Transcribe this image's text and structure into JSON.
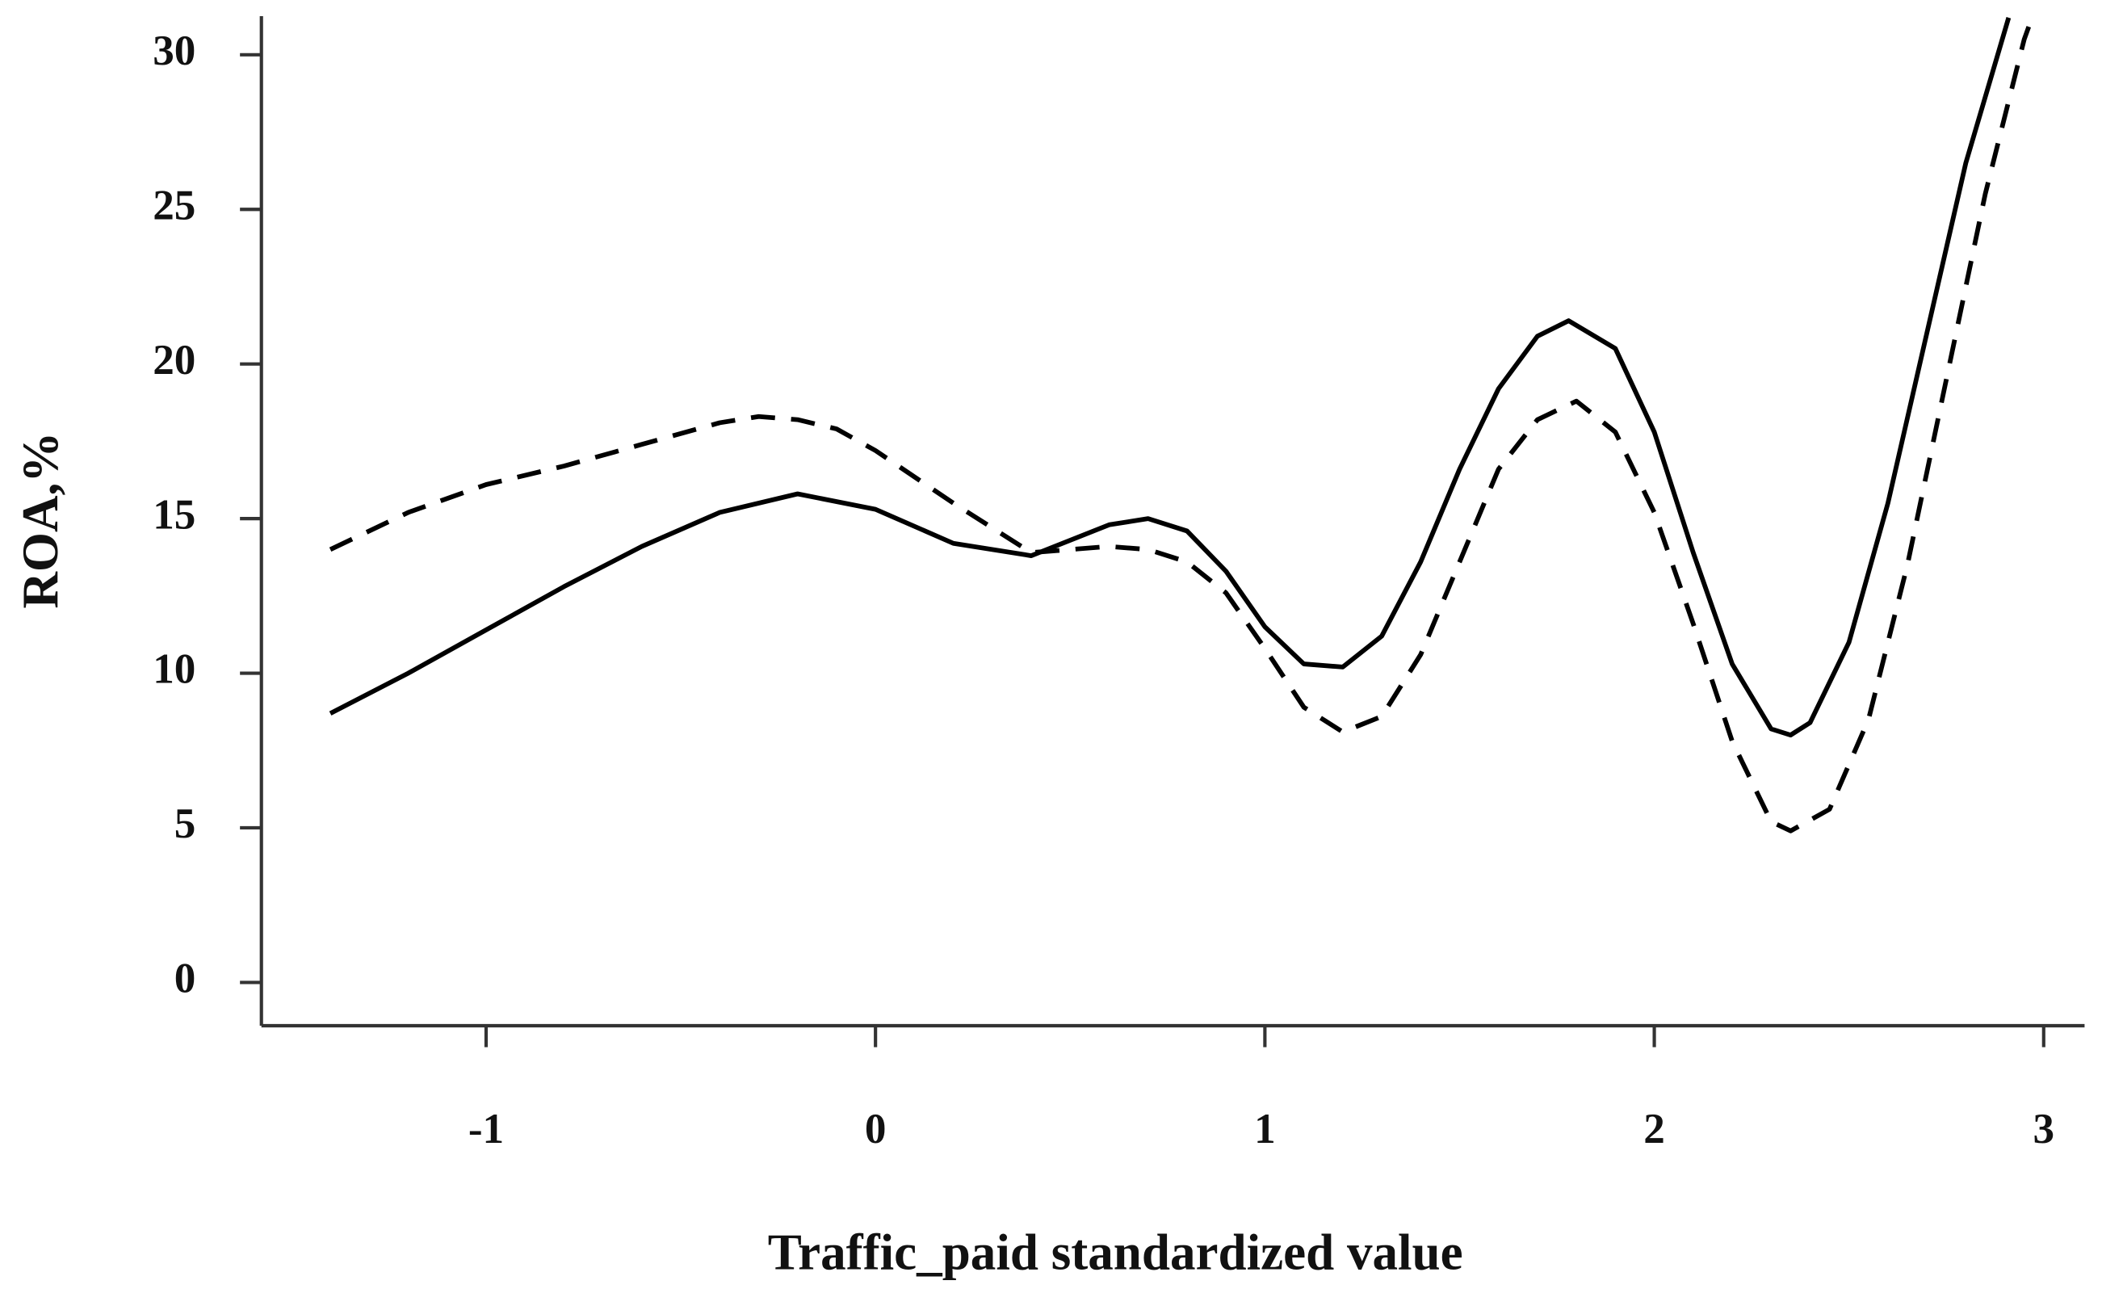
{
  "chart_data": {
    "type": "line",
    "x_label": "Traffic_paid standardized value",
    "y_label": "ROA,%",
    "xlim": [
      -1.577,
      3.105
    ],
    "ylim": [
      -1.4,
      31.25
    ],
    "xticks": [
      -1,
      0,
      1,
      2,
      3
    ],
    "yticks": [
      0,
      5,
      10,
      15,
      20,
      25,
      30
    ],
    "grid": false,
    "series": [
      {
        "color": "#000000",
        "dashed": false,
        "x": [
          -1.4,
          -1.2,
          -1,
          -0.8,
          -0.6,
          -0.4,
          -0.2,
          0,
          0.2,
          0.4,
          0.6,
          0.7,
          0.8,
          0.9,
          1.0,
          1.1,
          1.2,
          1.3,
          1.4,
          1.5,
          1.6,
          1.7,
          1.78,
          1.9,
          2.0,
          2.1,
          2.2,
          2.3,
          2.35,
          2.4,
          2.5,
          2.6,
          2.7,
          2.8,
          2.91
        ],
        "values": [
          8.7,
          10.0,
          11.4,
          12.8,
          14.1,
          15.2,
          15.8,
          15.3,
          14.2,
          13.8,
          14.8,
          15.0,
          14.6,
          13.3,
          11.5,
          10.3,
          10.2,
          11.2,
          13.6,
          16.6,
          19.2,
          20.9,
          21.4,
          20.5,
          17.8,
          13.9,
          10.3,
          8.2,
          8.0,
          8.4,
          11.0,
          15.5,
          21.0,
          26.5,
          31.2
        ]
      },
      {
        "color": "#000000",
        "dashed": true,
        "x": [
          -1.4,
          -1.2,
          -1,
          -0.8,
          -0.6,
          -0.4,
          -0.3,
          -0.2,
          -0.1,
          0,
          0.2,
          0.4,
          0.6,
          0.7,
          0.8,
          0.9,
          1.0,
          1.1,
          1.2,
          1.3,
          1.4,
          1.5,
          1.6,
          1.7,
          1.8,
          1.9,
          2.0,
          2.1,
          2.2,
          2.3,
          2.35,
          2.45,
          2.55,
          2.65,
          2.75,
          2.85,
          2.95,
          2.97
        ],
        "values": [
          14.0,
          15.2,
          16.1,
          16.7,
          17.4,
          18.1,
          18.3,
          18.2,
          17.9,
          17.2,
          15.5,
          13.9,
          14.1,
          14.0,
          13.6,
          12.6,
          10.8,
          8.9,
          8.1,
          8.6,
          10.6,
          13.6,
          16.6,
          18.2,
          18.8,
          17.8,
          15.2,
          11.6,
          7.8,
          5.2,
          4.9,
          5.6,
          8.5,
          13.5,
          19.5,
          25.5,
          30.5,
          31.2
        ]
      }
    ]
  }
}
